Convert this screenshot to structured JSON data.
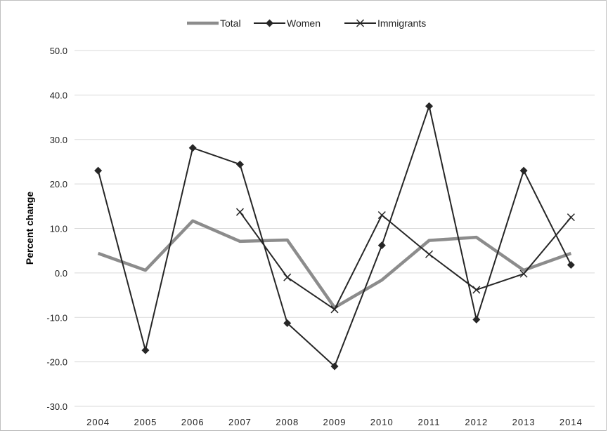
{
  "chart_data": {
    "type": "line",
    "title": "",
    "xlabel": "",
    "ylabel": "Percent change",
    "ylim": [
      -30,
      50
    ],
    "yticks": [
      50,
      40,
      30,
      20,
      10,
      0,
      -10,
      -20,
      -30
    ],
    "ytick_labels": [
      "50.0",
      "40.0",
      "30.0",
      "20.0",
      "10.0",
      "0.0",
      "-10.0",
      "-20.0",
      "-30.0"
    ],
    "categories": [
      "2004",
      "2005",
      "2006",
      "2007",
      "2008",
      "2009",
      "2010",
      "2011",
      "2012",
      "2013",
      "2014"
    ],
    "grid": "horizontal",
    "legend_position": "top",
    "series": [
      {
        "name": "Total",
        "marker": "none",
        "color": "#8c8c8c",
        "values": [
          4.4,
          0.6,
          11.7,
          7.1,
          7.4,
          -7.8,
          -1.6,
          7.3,
          8.0,
          0.6,
          4.4
        ]
      },
      {
        "name": "Women",
        "marker": "diamond",
        "color": "#262626",
        "values": [
          23.0,
          -17.4,
          28.1,
          24.4,
          -11.3,
          -21.0,
          6.2,
          37.5,
          -10.5,
          23.0,
          1.8
        ]
      },
      {
        "name": "Immigrants",
        "marker": "x",
        "color": "#262626",
        "values": [
          null,
          null,
          null,
          13.7,
          -1.0,
          -8.2,
          13.0,
          4.2,
          -3.8,
          -0.2,
          12.5
        ]
      }
    ]
  }
}
